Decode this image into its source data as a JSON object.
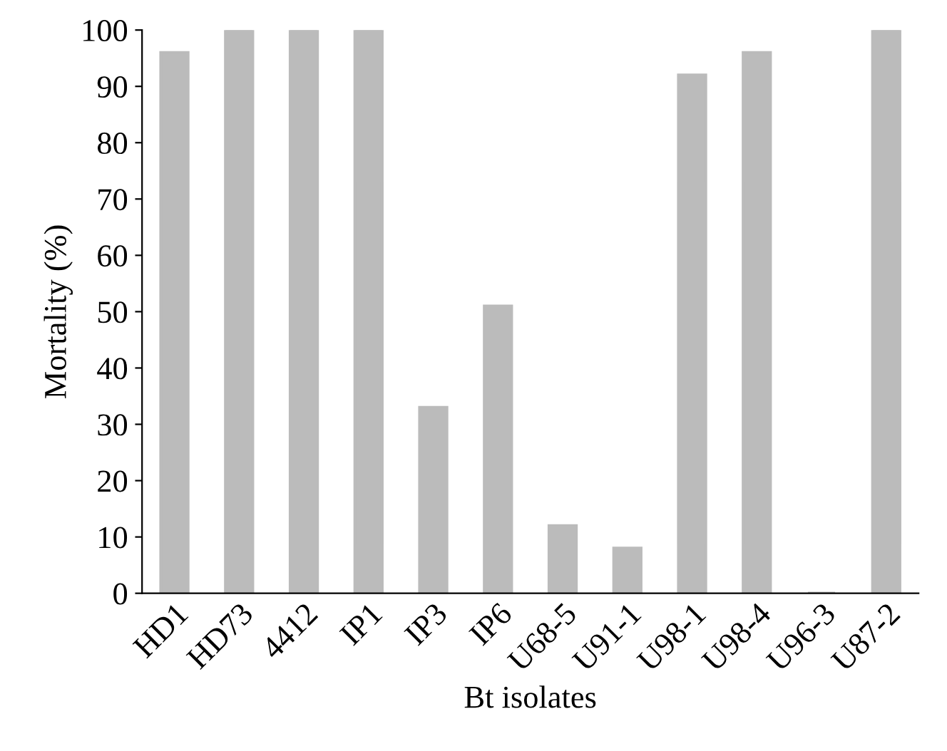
{
  "chart_data": {
    "type": "bar",
    "xlabel": "Bt isolates",
    "ylabel": "Mortality (%)",
    "categories": [
      "HD1",
      "HD73",
      "4412",
      "IP1",
      "IP3",
      "IP6",
      "U68-5",
      "U91-1",
      "U98-1",
      "U98-4",
      "U96-3",
      "U87-2"
    ],
    "values": [
      96,
      100,
      100,
      100,
      33,
      51,
      12,
      8,
      92,
      96,
      0,
      100
    ],
    "color": "#bbbbbb",
    "ylim": [
      0,
      100
    ],
    "yticks": [
      0,
      10,
      20,
      30,
      40,
      50,
      60,
      70,
      80,
      90,
      100
    ],
    "grid": false
  }
}
